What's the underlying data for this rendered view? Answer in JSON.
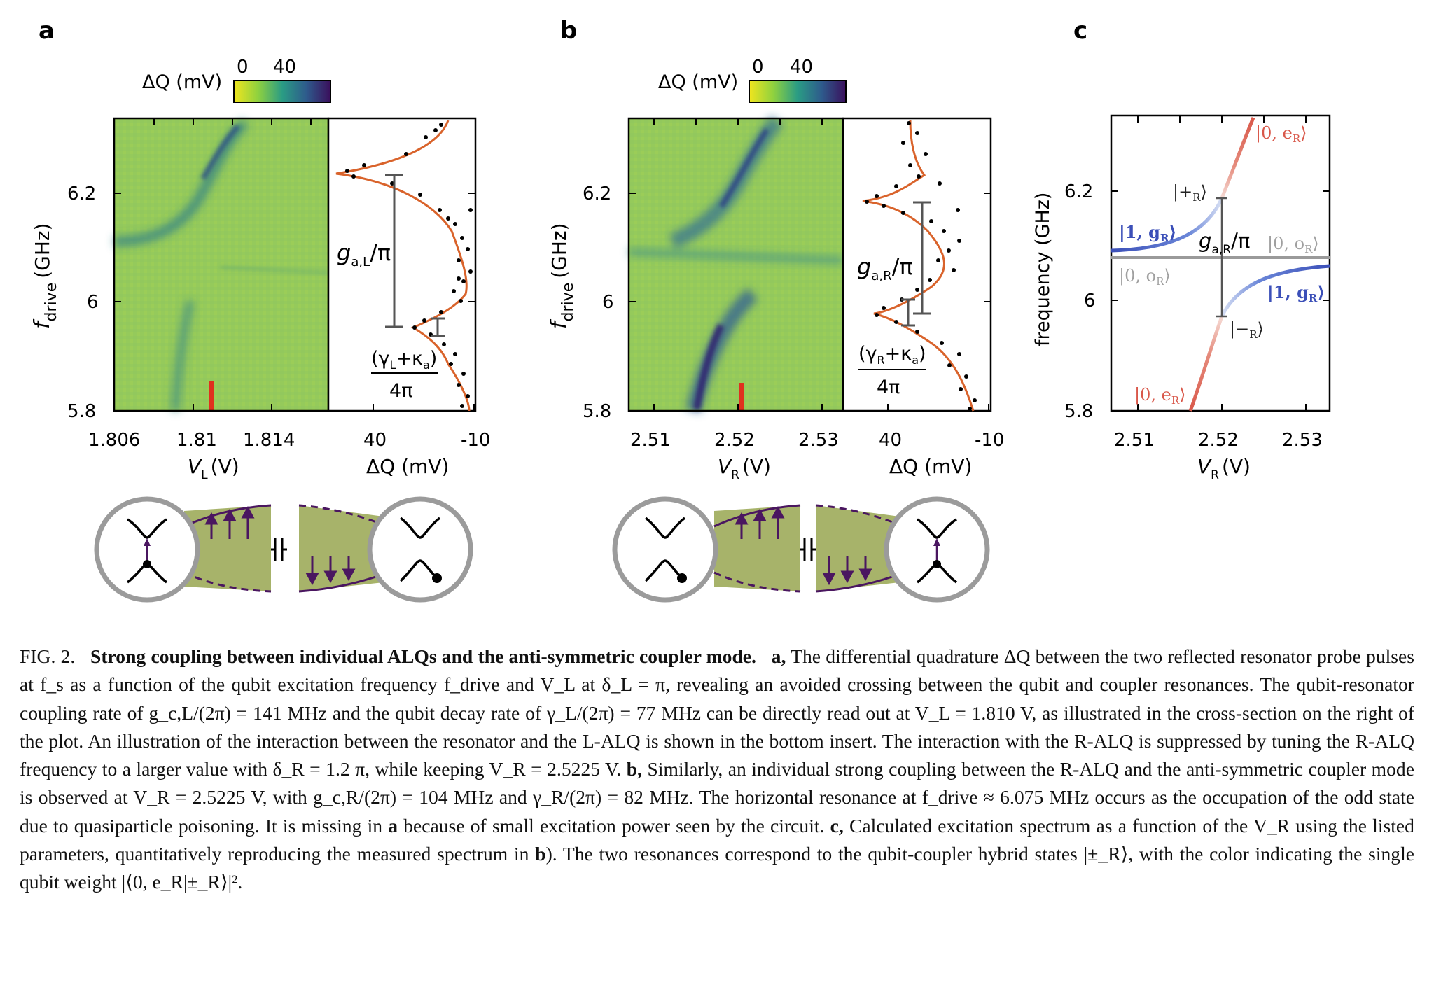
{
  "panels": {
    "a": {
      "label": "a",
      "colorbar": {
        "label": "ΔQ (mV)",
        "ticks": [
          "0",
          "40"
        ]
      },
      "y_axis": {
        "label_main": "f",
        "label_sub": "drive",
        "label_unit": "(GHz)",
        "ticks": [
          "6.2",
          "6",
          "5.8"
        ]
      },
      "x_axis": {
        "label_main": "V",
        "label_sub": "L",
        "label_unit": "(V)",
        "ticks": [
          "1.806",
          "1.81",
          "1.814"
        ]
      },
      "cut": {
        "x_ticks": [
          "40",
          "-10"
        ],
        "x_label": "ΔQ (mV)",
        "g_main": "g",
        "g_sub": "a,L",
        "g_tail": "/π",
        "frac_num_a": "(γ",
        "frac_num_sub": "L",
        "frac_num_b": "+κ",
        "frac_num_sub2": "a",
        "frac_num_c": ")",
        "frac_den": "4π"
      }
    },
    "b": {
      "label": "b",
      "colorbar": {
        "label": "ΔQ (mV)",
        "ticks": [
          "0",
          "40"
        ]
      },
      "y_axis": {
        "label_main": "f",
        "label_sub": "drive",
        "label_unit": "(GHz)",
        "ticks": [
          "6.2",
          "6",
          "5.8"
        ]
      },
      "x_axis": {
        "label_main": "V",
        "label_sub": "R",
        "label_unit": "(V)",
        "ticks": [
          "2.51",
          "2.52",
          "2.53"
        ]
      },
      "cut": {
        "x_ticks": [
          "40",
          "-10"
        ],
        "x_label": "ΔQ (mV)",
        "g_main": "g",
        "g_sub": "a,R",
        "g_tail": "/π",
        "frac_num_a": "(γ",
        "frac_num_sub": "R",
        "frac_num_b": "+κ",
        "frac_num_sub2": "a",
        "frac_num_c": ")",
        "frac_den": "4π"
      }
    },
    "c": {
      "label": "c",
      "y_axis": {
        "label": "frequency (GHz)",
        "ticks": [
          "6.2",
          "6",
          "5.8"
        ]
      },
      "x_axis": {
        "label_main": "V",
        "label_sub": "R",
        "label_unit": "(V)",
        "ticks": [
          "2.51",
          "2.52",
          "2.53"
        ]
      },
      "state_labels": {
        "e_top": "|0, e",
        "e_bot": "|0, e",
        "plus": "|+",
        "minus": "|−",
        "g_left": "|1, g",
        "g_right": "|1, g",
        "o_left": "|0, o",
        "o_right": "|0, o",
        "sub": "R",
        "close": "⟩"
      },
      "g_main": "g",
      "g_sub": "a,R",
      "g_tail": "/π",
      "colors": {
        "qubit": "#d9584a",
        "coupler": "#3b4fb8",
        "odd": "#9a9a9a"
      }
    }
  },
  "caption": {
    "fig": "FIG. 2.",
    "title": "Strong coupling between individual ALQs and the anti-symmetric coupler mode.",
    "a_label": "a,",
    "a_text": "The differential quadrature ΔQ between the two reflected resonator probe pulses at f_s as a function of the qubit excitation frequency f_drive and V_L at δ_L = π, revealing an avoided crossing between the qubit and coupler resonances. The qubit-resonator coupling rate of g_c,L/(2π) = 141 MHz and the qubit decay rate of γ_L/(2π) = 77 MHz can be directly read out at V_L = 1.810 V, as illustrated in the cross-section on the right of the plot. An illustration of the interaction between the resonator and the L-ALQ is shown in the bottom insert. The interaction with the R-ALQ is suppressed by tuning the R-ALQ frequency to a larger value with δ_R = 1.2 π, while keeping V_R = 2.5225 V.",
    "b_label": "b,",
    "b_text": "Similarly, an individual strong coupling between the R-ALQ and the anti-symmetric coupler mode is observed at V_R = 2.5225 V, with g_c,R/(2π) = 104 MHz and γ_R/(2π) = 82 MHz. The horizontal resonance at f_drive ≈ 6.075 MHz occurs as the occupation of the odd state due to quasiparticle poisoning. It is missing in",
    "b_text_bold": "a",
    "b_text_tail": "because of small excitation power seen by the circuit.",
    "c_label": "c,",
    "c_text": "Calculated excitation spectrum as a function of the V_R using the listed parameters, quantitatively reproducing the measured spectrum in",
    "c_text_bold": "b",
    "c_text_tail": "). The two resonances correspond to the qubit-coupler hybrid states |±_R⟩, with the color indicating the single qubit weight |⟨0, e_R|±_R⟩|²."
  }
}
